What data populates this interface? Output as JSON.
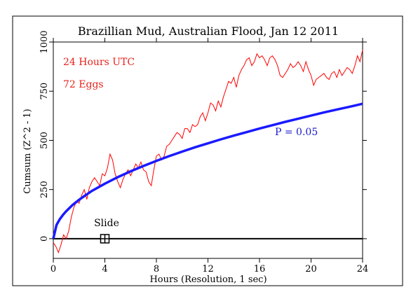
{
  "chart_data": {
    "type": "line",
    "title": "Brazillian Mud, Australian Flood, Jan 12 2011",
    "xlabel": "Hours (Resolution, 1 sec)",
    "ylabel": "Cumsum (Z^2 - 1)",
    "xlim": [
      0,
      24
    ],
    "ylim": [
      -100,
      1000
    ],
    "x_ticks": [
      0,
      4,
      8,
      12,
      16,
      20,
      24
    ],
    "y_ticks": [
      0,
      250,
      500,
      750,
      1000
    ],
    "grid": false,
    "annotations": {
      "hours": "24 Hours UTC",
      "eggs": "72 Eggs",
      "p_label": "P = 0.05",
      "slide": "Slide"
    },
    "slide_marker": {
      "x": 4,
      "y": 0
    },
    "colors": {
      "cumsum": "#ff0000",
      "p_curve": "#1a1aff",
      "text_red": "#e8221c",
      "text_blue": "#1a1acc",
      "axis": "#000000"
    },
    "series": [
      {
        "x": [
          0,
          0.2,
          0.4,
          0.6,
          0.8,
          1.0,
          1.2,
          1.4,
          1.6,
          1.8,
          2.0,
          2.2,
          2.4,
          2.6,
          2.8,
          3.0,
          3.2,
          3.4,
          3.6,
          3.8,
          4.0,
          4.2,
          4.4,
          4.6,
          4.8,
          5.0,
          5.2,
          5.4,
          5.6,
          5.8,
          6.0,
          6.2,
          6.4,
          6.6,
          6.8,
          7.0,
          7.2,
          7.4,
          7.6,
          7.8,
          8.0,
          8.2,
          8.4,
          8.6,
          8.8,
          9.0,
          9.2,
          9.4,
          9.6,
          9.8,
          10.0,
          10.2,
          10.4,
          10.6,
          10.8,
          11.0,
          11.2,
          11.4,
          11.6,
          11.8,
          12.0,
          12.2,
          12.4,
          12.6,
          12.8,
          13.0,
          13.2,
          13.4,
          13.6,
          13.8,
          14.0,
          14.2,
          14.4,
          14.6,
          14.8,
          15.0,
          15.2,
          15.4,
          15.6,
          15.8,
          16.0,
          16.2,
          16.4,
          16.6,
          16.8,
          17.0,
          17.2,
          17.4,
          17.6,
          17.8,
          18.0,
          18.2,
          18.4,
          18.6,
          18.8,
          19.0,
          19.2,
          19.4,
          19.6,
          19.8,
          20.0,
          20.2,
          20.4,
          20.6,
          20.8,
          21.0,
          21.2,
          21.4,
          21.6,
          21.8,
          22.0,
          22.2,
          22.4,
          22.6,
          22.8,
          23.0,
          23.2,
          23.4,
          23.6,
          23.8,
          24.0
        ],
        "values": [
          -20,
          -40,
          -70,
          -30,
          20,
          0,
          40,
          110,
          160,
          190,
          180,
          220,
          250,
          200,
          260,
          290,
          310,
          290,
          270,
          330,
          320,
          360,
          430,
          400,
          330,
          290,
          260,
          300,
          330,
          350,
          320,
          350,
          380,
          360,
          390,
          350,
          340,
          290,
          270,
          350,
          420,
          430,
          400,
          420,
          470,
          480,
          500,
          520,
          540,
          530,
          510,
          560,
          560,
          540,
          580,
          570,
          580,
          620,
          640,
          600,
          640,
          690,
          680,
          650,
          700,
          670,
          720,
          760,
          800,
          790,
          820,
          770,
          830,
          860,
          880,
          910,
          920,
          880,
          900,
          940,
          920,
          930,
          910,
          880,
          920,
          930,
          910,
          880,
          830,
          820,
          840,
          860,
          890,
          870,
          880,
          900,
          880,
          850,
          900,
          860,
          830,
          780,
          810,
          820,
          830,
          840,
          820,
          810,
          840,
          850,
          820,
          860,
          830,
          850,
          870,
          860,
          840,
          880,
          930,
          900,
          960
        ]
      },
      {
        "x": [
          0,
          0.25,
          0.5,
          0.75,
          1,
          1.5,
          2,
          2.5,
          3,
          4,
          5,
          6,
          7,
          8,
          9,
          10,
          11,
          12,
          13,
          14,
          15,
          16,
          17,
          18,
          19,
          20,
          21,
          22,
          23,
          24
        ],
        "values": [
          0,
          70,
          99,
          121,
          140,
          172,
          198,
          221,
          243,
          280,
          313,
          343,
          370,
          396,
          420,
          443,
          465,
          485,
          505,
          524,
          542,
          560,
          577,
          594,
          610,
          626,
          642,
          657,
          671,
          686
        ]
      }
    ]
  }
}
